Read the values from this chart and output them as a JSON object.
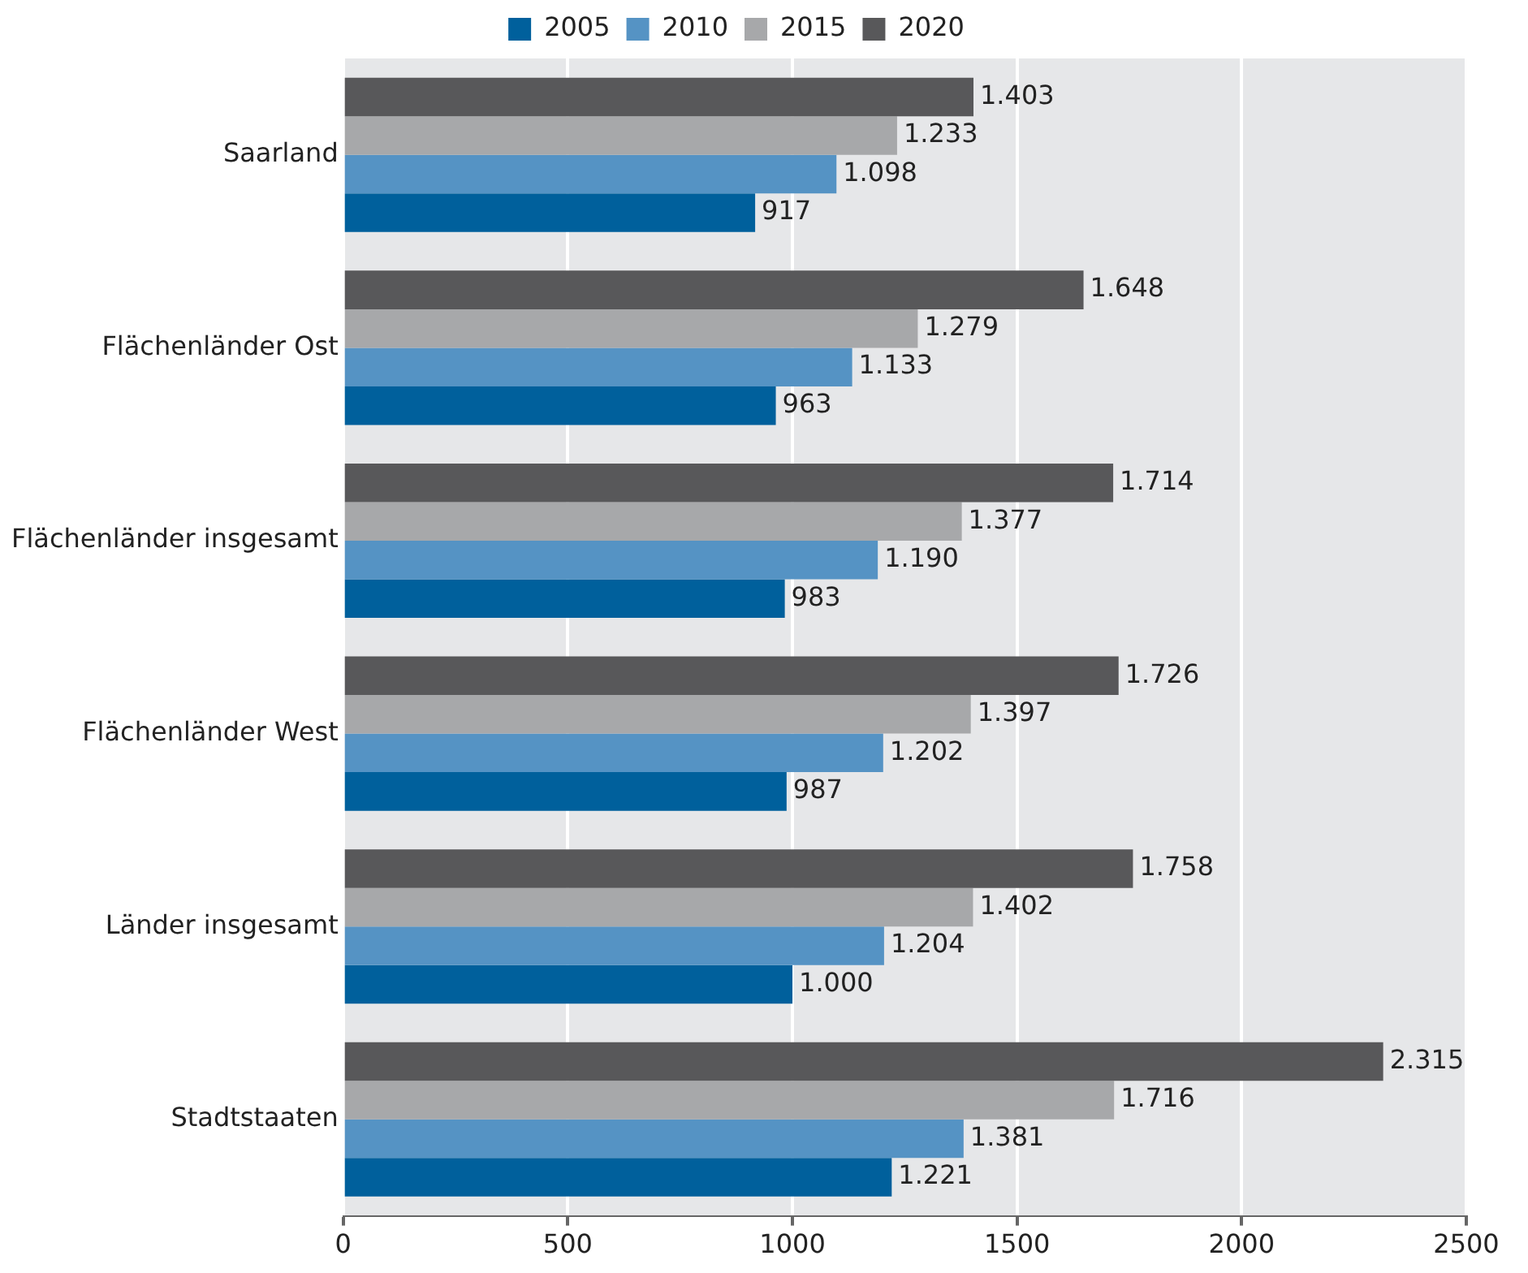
{
  "chart_data": {
    "type": "bar",
    "orientation": "horizontal",
    "categories": [
      "Saarland",
      "Flächenländer Ost",
      "Flächenländer insgesamt",
      "Flächenländer West",
      "Länder insgesamt",
      "Stadtstaaten"
    ],
    "series": [
      {
        "name": "2005",
        "color": "#00609c",
        "values": [
          917,
          963,
          983,
          987,
          1000,
          1221
        ],
        "value_labels": [
          "917",
          "963",
          "983",
          "987",
          "1.000",
          "1.221"
        ]
      },
      {
        "name": "2010",
        "color": "#5593c4",
        "values": [
          1098,
          1133,
          1190,
          1202,
          1204,
          1381
        ],
        "value_labels": [
          "1.098",
          "1.133",
          "1.190",
          "1.202",
          "1.204",
          "1.381"
        ]
      },
      {
        "name": "2015",
        "color": "#a7a8aa",
        "values": [
          1233,
          1279,
          1377,
          1397,
          1402,
          1716
        ],
        "value_labels": [
          "1.233",
          "1.279",
          "1.377",
          "1.397",
          "1.402",
          "1.716"
        ]
      },
      {
        "name": "2020",
        "color": "#58585a",
        "values": [
          1403,
          1648,
          1714,
          1726,
          1758,
          2315
        ],
        "value_labels": [
          "1.403",
          "1.648",
          "1.714",
          "1.726",
          "1.758",
          "2.315"
        ]
      }
    ],
    "xlim": [
      0,
      2500
    ],
    "xticks": [
      0,
      500,
      1000,
      1500,
      2000,
      2500
    ],
    "grid": "x",
    "legend": "top"
  }
}
